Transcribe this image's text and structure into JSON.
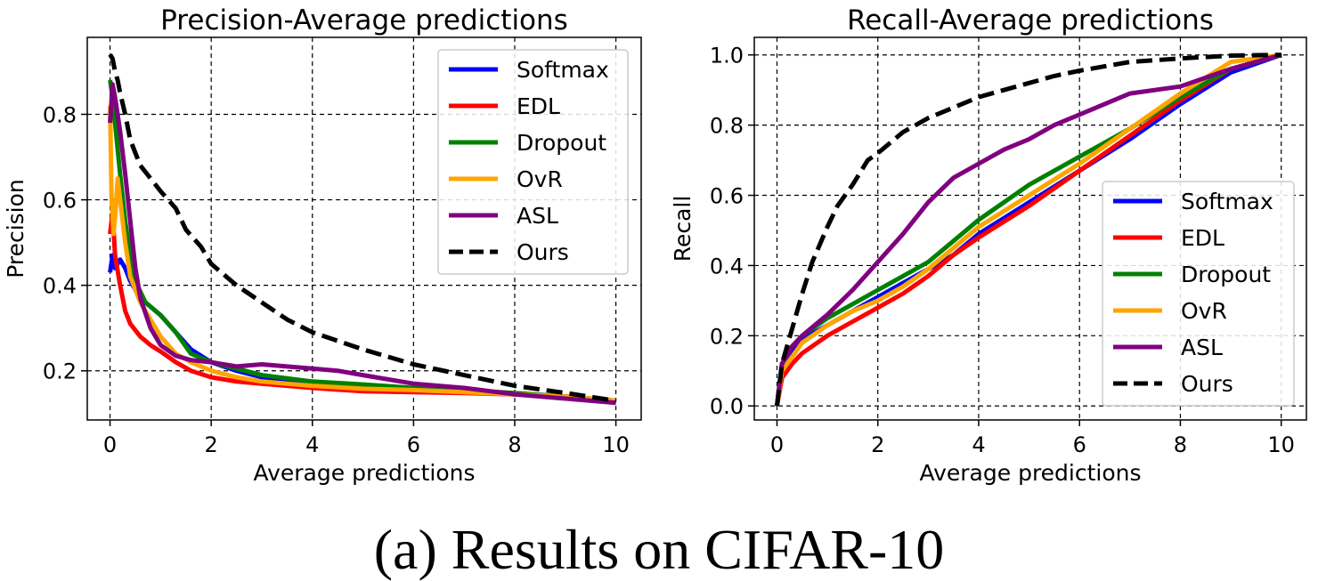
{
  "caption": "(a) Results on CIFAR-10",
  "chart_data": [
    {
      "type": "line",
      "title": "Precision-Average predictions",
      "xlabel": "Average predictions",
      "ylabel": "Precision",
      "xlim": [
        -0.45,
        10.5
      ],
      "ylim": [
        0.085,
        0.98
      ],
      "xticks": [
        0,
        2,
        4,
        6,
        8,
        10
      ],
      "yticks": [
        0.2,
        0.4,
        0.6,
        0.8
      ],
      "ytick_labels": [
        "0.2",
        "0.4",
        "0.6",
        "0.8"
      ],
      "grid": true,
      "legend_position": "top-right",
      "series": [
        {
          "name": "Softmax",
          "color": "#0000ff",
          "dash": "solid",
          "points": [
            [
              0,
              0.43
            ],
            [
              0.05,
              0.47
            ],
            [
              0.1,
              0.44
            ],
            [
              0.2,
              0.46
            ],
            [
              0.3,
              0.44
            ],
            [
              0.4,
              0.41
            ],
            [
              0.5,
              0.39
            ],
            [
              0.7,
              0.36
            ],
            [
              1.0,
              0.33
            ],
            [
              1.3,
              0.29
            ],
            [
              1.6,
              0.25
            ],
            [
              2.0,
              0.22
            ],
            [
              2.5,
              0.2
            ],
            [
              3.0,
              0.185
            ],
            [
              4.0,
              0.17
            ],
            [
              5.0,
              0.16
            ],
            [
              6.0,
              0.155
            ],
            [
              7.0,
              0.15
            ],
            [
              8.0,
              0.145
            ],
            [
              9.0,
              0.14
            ],
            [
              10.0,
              0.13
            ]
          ]
        },
        {
          "name": "EDL",
          "color": "#ff0000",
          "dash": "solid",
          "points": [
            [
              0,
              0.52
            ],
            [
              0.05,
              0.57
            ],
            [
              0.1,
              0.47
            ],
            [
              0.2,
              0.4
            ],
            [
              0.3,
              0.34
            ],
            [
              0.4,
              0.31
            ],
            [
              0.6,
              0.28
            ],
            [
              0.8,
              0.26
            ],
            [
              1.0,
              0.245
            ],
            [
              1.3,
              0.22
            ],
            [
              1.6,
              0.2
            ],
            [
              2.0,
              0.185
            ],
            [
              2.5,
              0.175
            ],
            [
              3.0,
              0.17
            ],
            [
              4.0,
              0.16
            ],
            [
              5.0,
              0.152
            ],
            [
              6.0,
              0.15
            ],
            [
              7.0,
              0.148
            ],
            [
              8.0,
              0.145
            ],
            [
              9.0,
              0.14
            ],
            [
              10.0,
              0.13
            ]
          ]
        },
        {
          "name": "Dropout",
          "color": "#008000",
          "dash": "solid",
          "points": [
            [
              0,
              0.88
            ],
            [
              0.05,
              0.84
            ],
            [
              0.1,
              0.78
            ],
            [
              0.2,
              0.66
            ],
            [
              0.3,
              0.55
            ],
            [
              0.4,
              0.47
            ],
            [
              0.5,
              0.41
            ],
            [
              0.7,
              0.36
            ],
            [
              1.0,
              0.33
            ],
            [
              1.3,
              0.29
            ],
            [
              1.6,
              0.24
            ],
            [
              2.0,
              0.22
            ],
            [
              2.5,
              0.205
            ],
            [
              3.0,
              0.19
            ],
            [
              4.0,
              0.175
            ],
            [
              5.0,
              0.168
            ],
            [
              6.0,
              0.16
            ],
            [
              7.0,
              0.155
            ],
            [
              8.0,
              0.148
            ],
            [
              9.0,
              0.14
            ],
            [
              10.0,
              0.13
            ]
          ]
        },
        {
          "name": "OvR",
          "color": "#ffa500",
          "dash": "solid",
          "points": [
            [
              0,
              0.82
            ],
            [
              0.03,
              0.6
            ],
            [
              0.07,
              0.52
            ],
            [
              0.1,
              0.56
            ],
            [
              0.15,
              0.65
            ],
            [
              0.2,
              0.6
            ],
            [
              0.3,
              0.5
            ],
            [
              0.4,
              0.42
            ],
            [
              0.6,
              0.36
            ],
            [
              0.8,
              0.32
            ],
            [
              1.0,
              0.28
            ],
            [
              1.3,
              0.24
            ],
            [
              1.6,
              0.22
            ],
            [
              2.0,
              0.2
            ],
            [
              2.5,
              0.185
            ],
            [
              3.0,
              0.175
            ],
            [
              4.0,
              0.165
            ],
            [
              5.0,
              0.158
            ],
            [
              6.0,
              0.155
            ],
            [
              7.0,
              0.15
            ],
            [
              8.0,
              0.145
            ],
            [
              9.0,
              0.14
            ],
            [
              10.0,
              0.13
            ]
          ]
        },
        {
          "name": "ASL",
          "color": "#800080",
          "dash": "solid",
          "points": [
            [
              0,
              0.78
            ],
            [
              0.05,
              0.87
            ],
            [
              0.1,
              0.84
            ],
            [
              0.2,
              0.76
            ],
            [
              0.3,
              0.66
            ],
            [
              0.4,
              0.55
            ],
            [
              0.5,
              0.44
            ],
            [
              0.6,
              0.37
            ],
            [
              0.8,
              0.3
            ],
            [
              1.0,
              0.26
            ],
            [
              1.3,
              0.235
            ],
            [
              1.6,
              0.225
            ],
            [
              2.0,
              0.22
            ],
            [
              2.5,
              0.21
            ],
            [
              3.0,
              0.215
            ],
            [
              3.5,
              0.21
            ],
            [
              4.0,
              0.205
            ],
            [
              4.5,
              0.2
            ],
            [
              5.0,
              0.19
            ],
            [
              6.0,
              0.17
            ],
            [
              7.0,
              0.16
            ],
            [
              8.0,
              0.145
            ],
            [
              9.0,
              0.135
            ],
            [
              10.0,
              0.125
            ]
          ]
        },
        {
          "name": "Ours",
          "color": "#000000",
          "dash": "dashed",
          "points": [
            [
              0,
              0.94
            ],
            [
              0.05,
              0.93
            ],
            [
              0.1,
              0.9
            ],
            [
              0.15,
              0.88
            ],
            [
              0.2,
              0.85
            ],
            [
              0.3,
              0.8
            ],
            [
              0.4,
              0.74
            ],
            [
              0.6,
              0.68
            ],
            [
              0.8,
              0.65
            ],
            [
              1.0,
              0.62
            ],
            [
              1.3,
              0.58
            ],
            [
              1.5,
              0.53
            ],
            [
              1.8,
              0.49
            ],
            [
              2.0,
              0.45
            ],
            [
              2.5,
              0.4
            ],
            [
              3.0,
              0.36
            ],
            [
              3.5,
              0.32
            ],
            [
              4.0,
              0.29
            ],
            [
              4.5,
              0.27
            ],
            [
              5.0,
              0.25
            ],
            [
              6.0,
              0.215
            ],
            [
              7.0,
              0.19
            ],
            [
              8.0,
              0.165
            ],
            [
              9.0,
              0.148
            ],
            [
              10.0,
              0.13
            ]
          ]
        }
      ]
    },
    {
      "type": "line",
      "title": "Recall-Average predictions",
      "xlabel": "Average predictions",
      "ylabel": "Recall",
      "xlim": [
        -0.45,
        10.5
      ],
      "ylim": [
        -0.04,
        1.05
      ],
      "xticks": [
        0,
        2,
        4,
        6,
        8,
        10
      ],
      "yticks": [
        0.0,
        0.2,
        0.4,
        0.6,
        0.8,
        1.0
      ],
      "ytick_labels": [
        "0.0",
        "0.2",
        "0.4",
        "0.6",
        "0.8",
        "1.0"
      ],
      "grid": true,
      "legend_position": "center-right",
      "series": [
        {
          "name": "Softmax",
          "color": "#0000ff",
          "dash": "solid",
          "points": [
            [
              0,
              0
            ],
            [
              0.1,
              0.12
            ],
            [
              0.3,
              0.16
            ],
            [
              0.5,
              0.19
            ],
            [
              1.0,
              0.23
            ],
            [
              1.5,
              0.27
            ],
            [
              2.0,
              0.31
            ],
            [
              2.5,
              0.35
            ],
            [
              3.0,
              0.39
            ],
            [
              3.5,
              0.43
            ],
            [
              4.0,
              0.49
            ],
            [
              5.0,
              0.58
            ],
            [
              6.0,
              0.67
            ],
            [
              7.0,
              0.76
            ],
            [
              8.0,
              0.86
            ],
            [
              9.0,
              0.95
            ],
            [
              10.0,
              1.0
            ]
          ]
        },
        {
          "name": "EDL",
          "color": "#ff0000",
          "dash": "solid",
          "points": [
            [
              0,
              0
            ],
            [
              0.1,
              0.08
            ],
            [
              0.3,
              0.12
            ],
            [
              0.5,
              0.15
            ],
            [
              1.0,
              0.2
            ],
            [
              1.5,
              0.24
            ],
            [
              2.0,
              0.28
            ],
            [
              2.5,
              0.32
            ],
            [
              3.0,
              0.37
            ],
            [
              3.5,
              0.43
            ],
            [
              4.0,
              0.48
            ],
            [
              5.0,
              0.57
            ],
            [
              6.0,
              0.67
            ],
            [
              7.0,
              0.77
            ],
            [
              8.0,
              0.87
            ],
            [
              9.0,
              0.96
            ],
            [
              10.0,
              1.0
            ]
          ]
        },
        {
          "name": "Dropout",
          "color": "#008000",
          "dash": "solid",
          "points": [
            [
              0,
              0
            ],
            [
              0.1,
              0.12
            ],
            [
              0.3,
              0.17
            ],
            [
              0.5,
              0.2
            ],
            [
              1.0,
              0.25
            ],
            [
              1.5,
              0.29
            ],
            [
              2.0,
              0.33
            ],
            [
              2.5,
              0.37
            ],
            [
              3.0,
              0.41
            ],
            [
              3.5,
              0.47
            ],
            [
              4.0,
              0.53
            ],
            [
              5.0,
              0.63
            ],
            [
              6.0,
              0.71
            ],
            [
              7.0,
              0.79
            ],
            [
              8.0,
              0.88
            ],
            [
              9.0,
              0.96
            ],
            [
              10.0,
              1.0
            ]
          ]
        },
        {
          "name": "OvR",
          "color": "#ffa500",
          "dash": "solid",
          "points": [
            [
              0,
              0
            ],
            [
              0.1,
              0.1
            ],
            [
              0.3,
              0.14
            ],
            [
              0.5,
              0.18
            ],
            [
              1.0,
              0.23
            ],
            [
              1.5,
              0.27
            ],
            [
              2.0,
              0.3
            ],
            [
              2.5,
              0.34
            ],
            [
              3.0,
              0.39
            ],
            [
              3.5,
              0.45
            ],
            [
              4.0,
              0.51
            ],
            [
              5.0,
              0.6
            ],
            [
              6.0,
              0.69
            ],
            [
              7.0,
              0.79
            ],
            [
              8.0,
              0.89
            ],
            [
              9.0,
              0.98
            ],
            [
              10.0,
              1.0
            ]
          ]
        },
        {
          "name": "ASL",
          "color": "#800080",
          "dash": "solid",
          "points": [
            [
              0,
              0
            ],
            [
              0.1,
              0.12
            ],
            [
              0.3,
              0.17
            ],
            [
              0.5,
              0.2
            ],
            [
              1.0,
              0.26
            ],
            [
              1.5,
              0.33
            ],
            [
              2.0,
              0.41
            ],
            [
              2.5,
              0.49
            ],
            [
              3.0,
              0.58
            ],
            [
              3.5,
              0.65
            ],
            [
              4.0,
              0.69
            ],
            [
              4.5,
              0.73
            ],
            [
              5.0,
              0.76
            ],
            [
              5.5,
              0.8
            ],
            [
              6.0,
              0.83
            ],
            [
              7.0,
              0.89
            ],
            [
              8.0,
              0.91
            ],
            [
              9.0,
              0.96
            ],
            [
              10.0,
              1.0
            ]
          ]
        },
        {
          "name": "Ours",
          "color": "#000000",
          "dash": "dashed",
          "points": [
            [
              0,
              0
            ],
            [
              0.1,
              0.12
            ],
            [
              0.3,
              0.22
            ],
            [
              0.5,
              0.32
            ],
            [
              0.7,
              0.41
            ],
            [
              1.0,
              0.51
            ],
            [
              1.2,
              0.57
            ],
            [
              1.5,
              0.63
            ],
            [
              1.8,
              0.7
            ],
            [
              2.0,
              0.72
            ],
            [
              2.5,
              0.78
            ],
            [
              3.0,
              0.82
            ],
            [
              3.5,
              0.85
            ],
            [
              4.0,
              0.88
            ],
            [
              4.5,
              0.9
            ],
            [
              5.0,
              0.92
            ],
            [
              5.5,
              0.94
            ],
            [
              6.0,
              0.955
            ],
            [
              7.0,
              0.98
            ],
            [
              8.0,
              0.99
            ],
            [
              9.0,
              0.998
            ],
            [
              10.0,
              1.0
            ]
          ]
        }
      ]
    }
  ]
}
